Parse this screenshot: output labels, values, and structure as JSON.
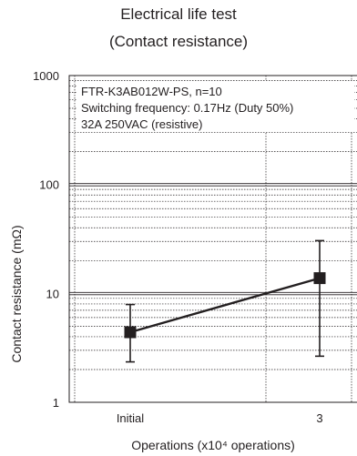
{
  "chart_data": {
    "type": "line",
    "title_line1": "Electrical life test",
    "title_line2": "(Contact resistance)",
    "xlabel": "Operations (x10⁴ operations)",
    "ylabel": "Contact resistance (mΩ)",
    "y_scale": "log",
    "ylim": [
      1,
      1000
    ],
    "y_ticks": [
      1,
      10,
      100,
      1000
    ],
    "y_tick_labels": [
      "1",
      "10",
      "100",
      "1000"
    ],
    "categories": [
      "Initial",
      "3"
    ],
    "annotations": [
      "FTR-K3AB012W-PS, n=10",
      "Switching frequency: 0.17Hz (Duty 50%)",
      "32A 250VAC (resistive)"
    ],
    "grid": true,
    "series": [
      {
        "mean": [
          4.4,
          13.8
        ],
        "min": [
          2.35,
          2.65
        ],
        "max": [
          7.9,
          30.5
        ]
      }
    ]
  }
}
